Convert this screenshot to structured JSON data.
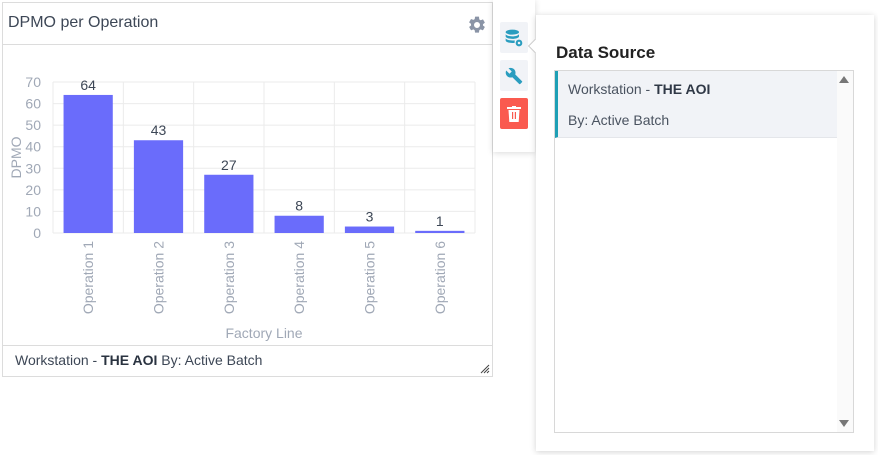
{
  "widget": {
    "title": "DPMO per Operation",
    "footer": {
      "prefix": "Workstation - ",
      "bold": "THE AOI",
      "suffix": " By: Active Batch"
    }
  },
  "toolbar": {
    "buttons": [
      {
        "icon": "database-gear-icon",
        "label": "Data Source"
      },
      {
        "icon": "wrench-icon",
        "label": "Settings"
      },
      {
        "icon": "trash-icon",
        "label": "Delete"
      }
    ],
    "colors": {
      "accent": "#2a9dbf",
      "delete": "#fa5a4f",
      "button_bg": "#f1f3f7"
    }
  },
  "panel": {
    "title": "Data Source",
    "items": [
      {
        "line1_prefix": "Workstation - ",
        "line1_bold": "THE AOI",
        "line2": "By: Active Batch",
        "selected": true
      }
    ]
  },
  "chart_data": {
    "type": "bar",
    "title": "DPMO per Operation",
    "categories": [
      "Operation 1",
      "Operation 2",
      "Operation 3",
      "Operation 4",
      "Operation 5",
      "Operation 6"
    ],
    "values": [
      64,
      43,
      27,
      8,
      3,
      1
    ],
    "data_labels": [
      "64",
      "43",
      "27",
      "8",
      "3",
      "1"
    ],
    "xlabel": "Factory Line",
    "ylabel": "DPMO",
    "ylim": [
      0,
      70
    ],
    "yticks": [
      0,
      10,
      20,
      30,
      40,
      50,
      60,
      70
    ],
    "grid": true,
    "legend": null,
    "bar_color": "#6a6cfb"
  }
}
